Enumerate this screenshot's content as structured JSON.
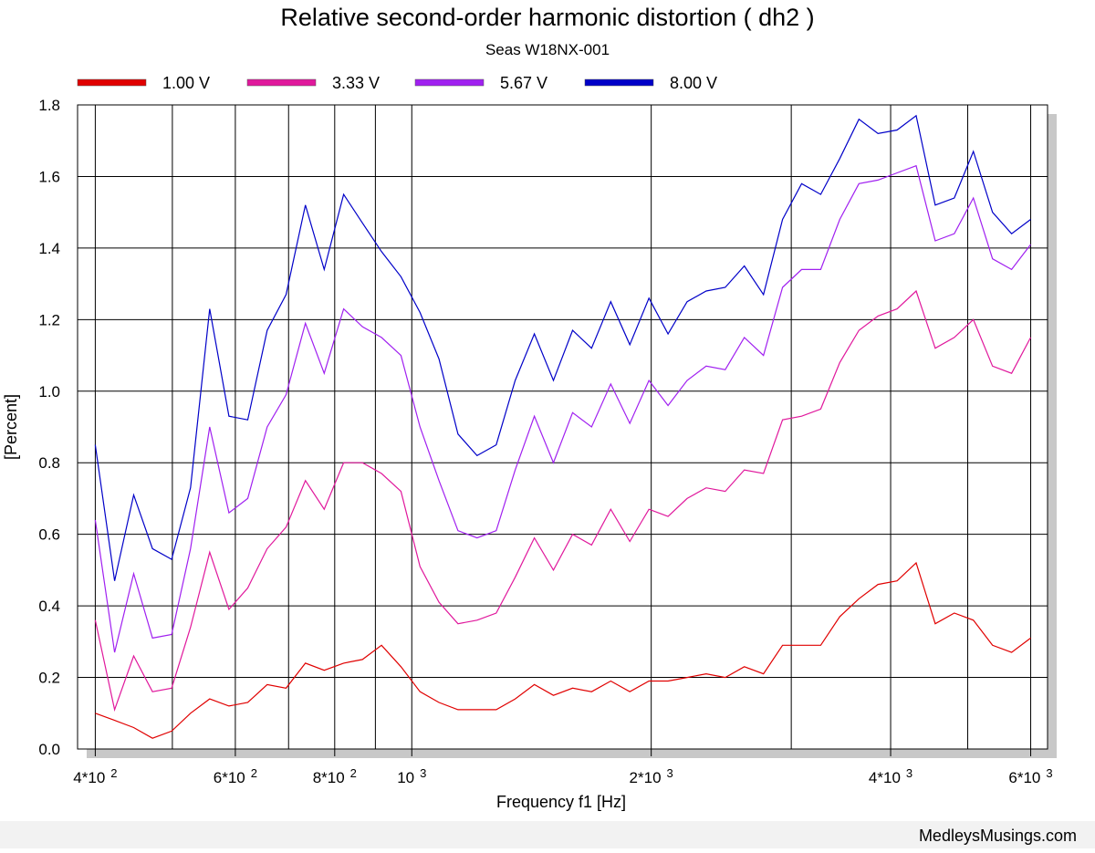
{
  "chart_data": {
    "type": "line",
    "title": "Relative second-order harmonic distortion  ( dh2 )",
    "subtitle": "Seas W18NX-001",
    "x_label": "Frequency f1  [Hz]",
    "y_label": "[Percent]",
    "footer": "MedleysMusings.com",
    "log_x": true,
    "grid": true,
    "xlim": [
      380,
      6300
    ],
    "ylim": [
      0,
      1.8
    ],
    "yticks": [
      {
        "value": 0,
        "label": "0.0"
      },
      0.2,
      0.4,
      0.6,
      0.8,
      {
        "value": 1,
        "label": "1.0"
      },
      1.2,
      1.4,
      1.6,
      1.8
    ],
    "xticks": [
      {
        "value": 400,
        "label": "4*10",
        "exponent": "2"
      },
      {
        "value": 600,
        "label": "6*10",
        "exponent": "2"
      },
      {
        "value": 800,
        "label": "8*10",
        "exponent": "2"
      },
      {
        "value": 1000,
        "label": "10",
        "exponent": "3"
      },
      {
        "value": 2000,
        "label": "2*10",
        "exponent": "3"
      },
      {
        "value": 4000,
        "label": "4*10",
        "exponent": "3"
      },
      {
        "value": 6000,
        "label": "6*10",
        "exponent": "3"
      }
    ],
    "xgrid": [
      500,
      700,
      900,
      3000,
      5000
    ],
    "x": [
      400,
      423,
      447,
      472,
      499,
      527,
      557,
      589,
      622,
      658,
      695,
      735,
      776,
      821,
      867,
      916,
      969,
      1024,
      1082,
      1143,
      1208,
      1277,
      1349,
      1426,
      1507,
      1593,
      1683,
      1779,
      1880,
      1987,
      2100,
      2219,
      2345,
      2478,
      2619,
      2768,
      2925,
      3091,
      3267,
      3452,
      3649,
      3856,
      4075,
      4307,
      4551,
      4810,
      5083,
      5372,
      5677,
      6000
    ],
    "series": [
      {
        "name": "1.00 V",
        "color": "#e00000",
        "values": [
          0.1,
          0.08,
          0.06,
          0.03,
          0.05,
          0.1,
          0.14,
          0.12,
          0.13,
          0.18,
          0.17,
          0.24,
          0.22,
          0.24,
          0.25,
          0.29,
          0.23,
          0.16,
          0.13,
          0.11,
          0.11,
          0.11,
          0.14,
          0.18,
          0.15,
          0.17,
          0.16,
          0.19,
          0.16,
          0.19,
          0.19,
          0.2,
          0.21,
          0.2,
          0.23,
          0.21,
          0.29,
          0.29,
          0.29,
          0.37,
          0.42,
          0.46,
          0.47,
          0.52,
          0.35,
          0.38,
          0.36,
          0.29,
          0.27,
          0.31
        ]
      },
      {
        "name": "3.33 V",
        "color": "#e0189c",
        "values": [
          0.36,
          0.11,
          0.26,
          0.16,
          0.17,
          0.34,
          0.55,
          0.39,
          0.45,
          0.56,
          0.62,
          0.75,
          0.67,
          0.8,
          0.8,
          0.77,
          0.72,
          0.51,
          0.41,
          0.35,
          0.36,
          0.38,
          0.48,
          0.59,
          0.5,
          0.6,
          0.57,
          0.67,
          0.58,
          0.67,
          0.65,
          0.7,
          0.73,
          0.72,
          0.78,
          0.77,
          0.92,
          0.93,
          0.95,
          1.08,
          1.17,
          1.21,
          1.23,
          1.28,
          1.12,
          1.15,
          1.2,
          1.07,
          1.05,
          1.15
        ]
      },
      {
        "name": "5.67 V",
        "color": "#a020f0",
        "values": [
          0.64,
          0.27,
          0.49,
          0.31,
          0.32,
          0.56,
          0.9,
          0.66,
          0.7,
          0.9,
          0.99,
          1.19,
          1.05,
          1.23,
          1.18,
          1.15,
          1.1,
          0.9,
          0.75,
          0.61,
          0.59,
          0.61,
          0.78,
          0.93,
          0.8,
          0.94,
          0.9,
          1.02,
          0.91,
          1.03,
          0.96,
          1.03,
          1.07,
          1.06,
          1.15,
          1.1,
          1.29,
          1.34,
          1.34,
          1.48,
          1.58,
          1.59,
          1.61,
          1.63,
          1.42,
          1.44,
          1.54,
          1.37,
          1.34,
          1.41
        ]
      },
      {
        "name": "8.00 V",
        "color": "#0000c8",
        "values": [
          0.85,
          0.47,
          0.71,
          0.56,
          0.53,
          0.73,
          1.23,
          0.93,
          0.92,
          1.17,
          1.27,
          1.52,
          1.34,
          1.55,
          1.47,
          1.39,
          1.32,
          1.22,
          1.09,
          0.88,
          0.82,
          0.85,
          1.03,
          1.16,
          1.03,
          1.17,
          1.12,
          1.25,
          1.13,
          1.26,
          1.16,
          1.25,
          1.28,
          1.29,
          1.35,
          1.27,
          1.48,
          1.58,
          1.55,
          1.65,
          1.76,
          1.72,
          1.73,
          1.77,
          1.52,
          1.54,
          1.67,
          1.5,
          1.44,
          1.48
        ]
      }
    ]
  }
}
